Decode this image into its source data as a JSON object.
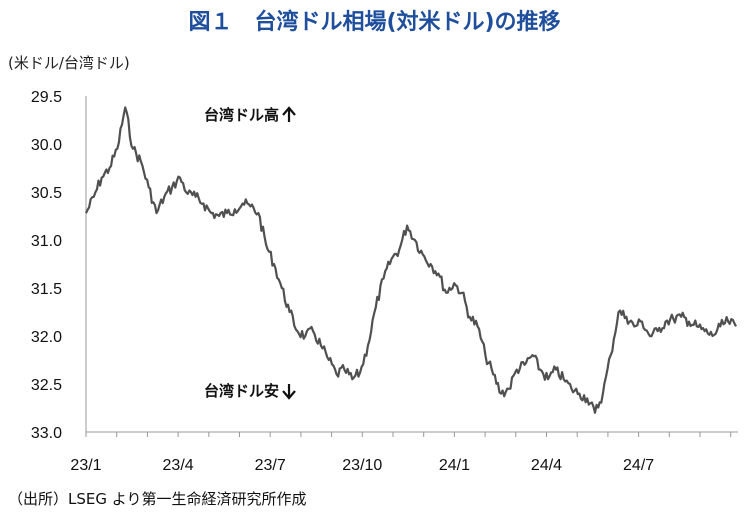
{
  "chart_data": {
    "type": "line",
    "title": "図１　台湾ドル相場(対米ドル)の推移",
    "unit_label": "(米ドル/台湾ドル)",
    "source": "（出所）LSEG より第一生命経済研究所作成",
    "y_inverted": true,
    "ylim": [
      29.5,
      33.0
    ],
    "y_ticks": [
      "29.5",
      "30.0",
      "30.5",
      "31.0",
      "31.5",
      "32.0",
      "32.5",
      "33.0"
    ],
    "x_ticks": [
      "23/1",
      "23/4",
      "23/7",
      "23/10",
      "24/1",
      "24/4",
      "24/7"
    ],
    "grid": false,
    "line_color": "#505050",
    "annotations": {
      "top": "台湾ドル高",
      "bottom": "台湾ドル安"
    },
    "series": [
      {
        "x": [
          "23/1",
          "23/1",
          "23/1",
          "23/1",
          "23/2",
          "23/2",
          "23/2",
          "23/2",
          "23/3",
          "23/3",
          "23/3",
          "23/3",
          "23/4",
          "23/4",
          "23/4",
          "23/4",
          "23/5",
          "23/5",
          "23/5",
          "23/5",
          "23/6",
          "23/6",
          "23/6",
          "23/6",
          "23/7",
          "23/7",
          "23/7",
          "23/7",
          "23/8",
          "23/8",
          "23/8",
          "23/8",
          "23/9",
          "23/9",
          "23/9",
          "23/9",
          "23/10",
          "23/10",
          "23/10",
          "23/10",
          "23/11",
          "23/11",
          "23/11",
          "23/11",
          "23/12",
          "23/12",
          "23/12",
          "23/12",
          "24/1",
          "24/1",
          "24/1",
          "24/1",
          "24/2",
          "24/2",
          "24/2",
          "24/2",
          "24/3",
          "24/3",
          "24/3",
          "24/3",
          "24/4",
          "24/4",
          "24/4",
          "24/4",
          "24/5",
          "24/5",
          "24/5",
          "24/5",
          "24/6",
          "24/6",
          "24/6",
          "24/6",
          "24/7",
          "24/7",
          "24/7",
          "24/7",
          "24/8",
          "24/8",
          "24/8",
          "24/8",
          "24/9",
          "24/9",
          "24/9",
          "24/9"
        ],
        "values": [
          30.72,
          30.55,
          30.35,
          30.25,
          30.05,
          29.62,
          30.05,
          30.18,
          30.45,
          30.72,
          30.55,
          30.45,
          30.35,
          30.52,
          30.55,
          30.62,
          30.72,
          30.75,
          30.72,
          30.68,
          30.62,
          30.65,
          30.72,
          31.05,
          31.25,
          31.5,
          31.75,
          31.95,
          32.0,
          31.95,
          32.1,
          32.25,
          32.4,
          32.35,
          32.45,
          32.38,
          32.1,
          31.7,
          31.4,
          31.2,
          31.1,
          30.85,
          31.0,
          31.15,
          31.25,
          31.35,
          31.55,
          31.45,
          31.55,
          31.8,
          31.9,
          32.2,
          32.4,
          32.6,
          32.55,
          32.35,
          32.3,
          32.2,
          32.35,
          32.45,
          32.35,
          32.45,
          32.55,
          32.6,
          32.65,
          32.8,
          32.6,
          32.2,
          31.75,
          31.8,
          31.9,
          31.85,
          32.0,
          31.95,
          31.85,
          31.82,
          31.8,
          31.85,
          31.9,
          31.95,
          32.0,
          31.9,
          31.85,
          31.9
        ]
      }
    ]
  }
}
